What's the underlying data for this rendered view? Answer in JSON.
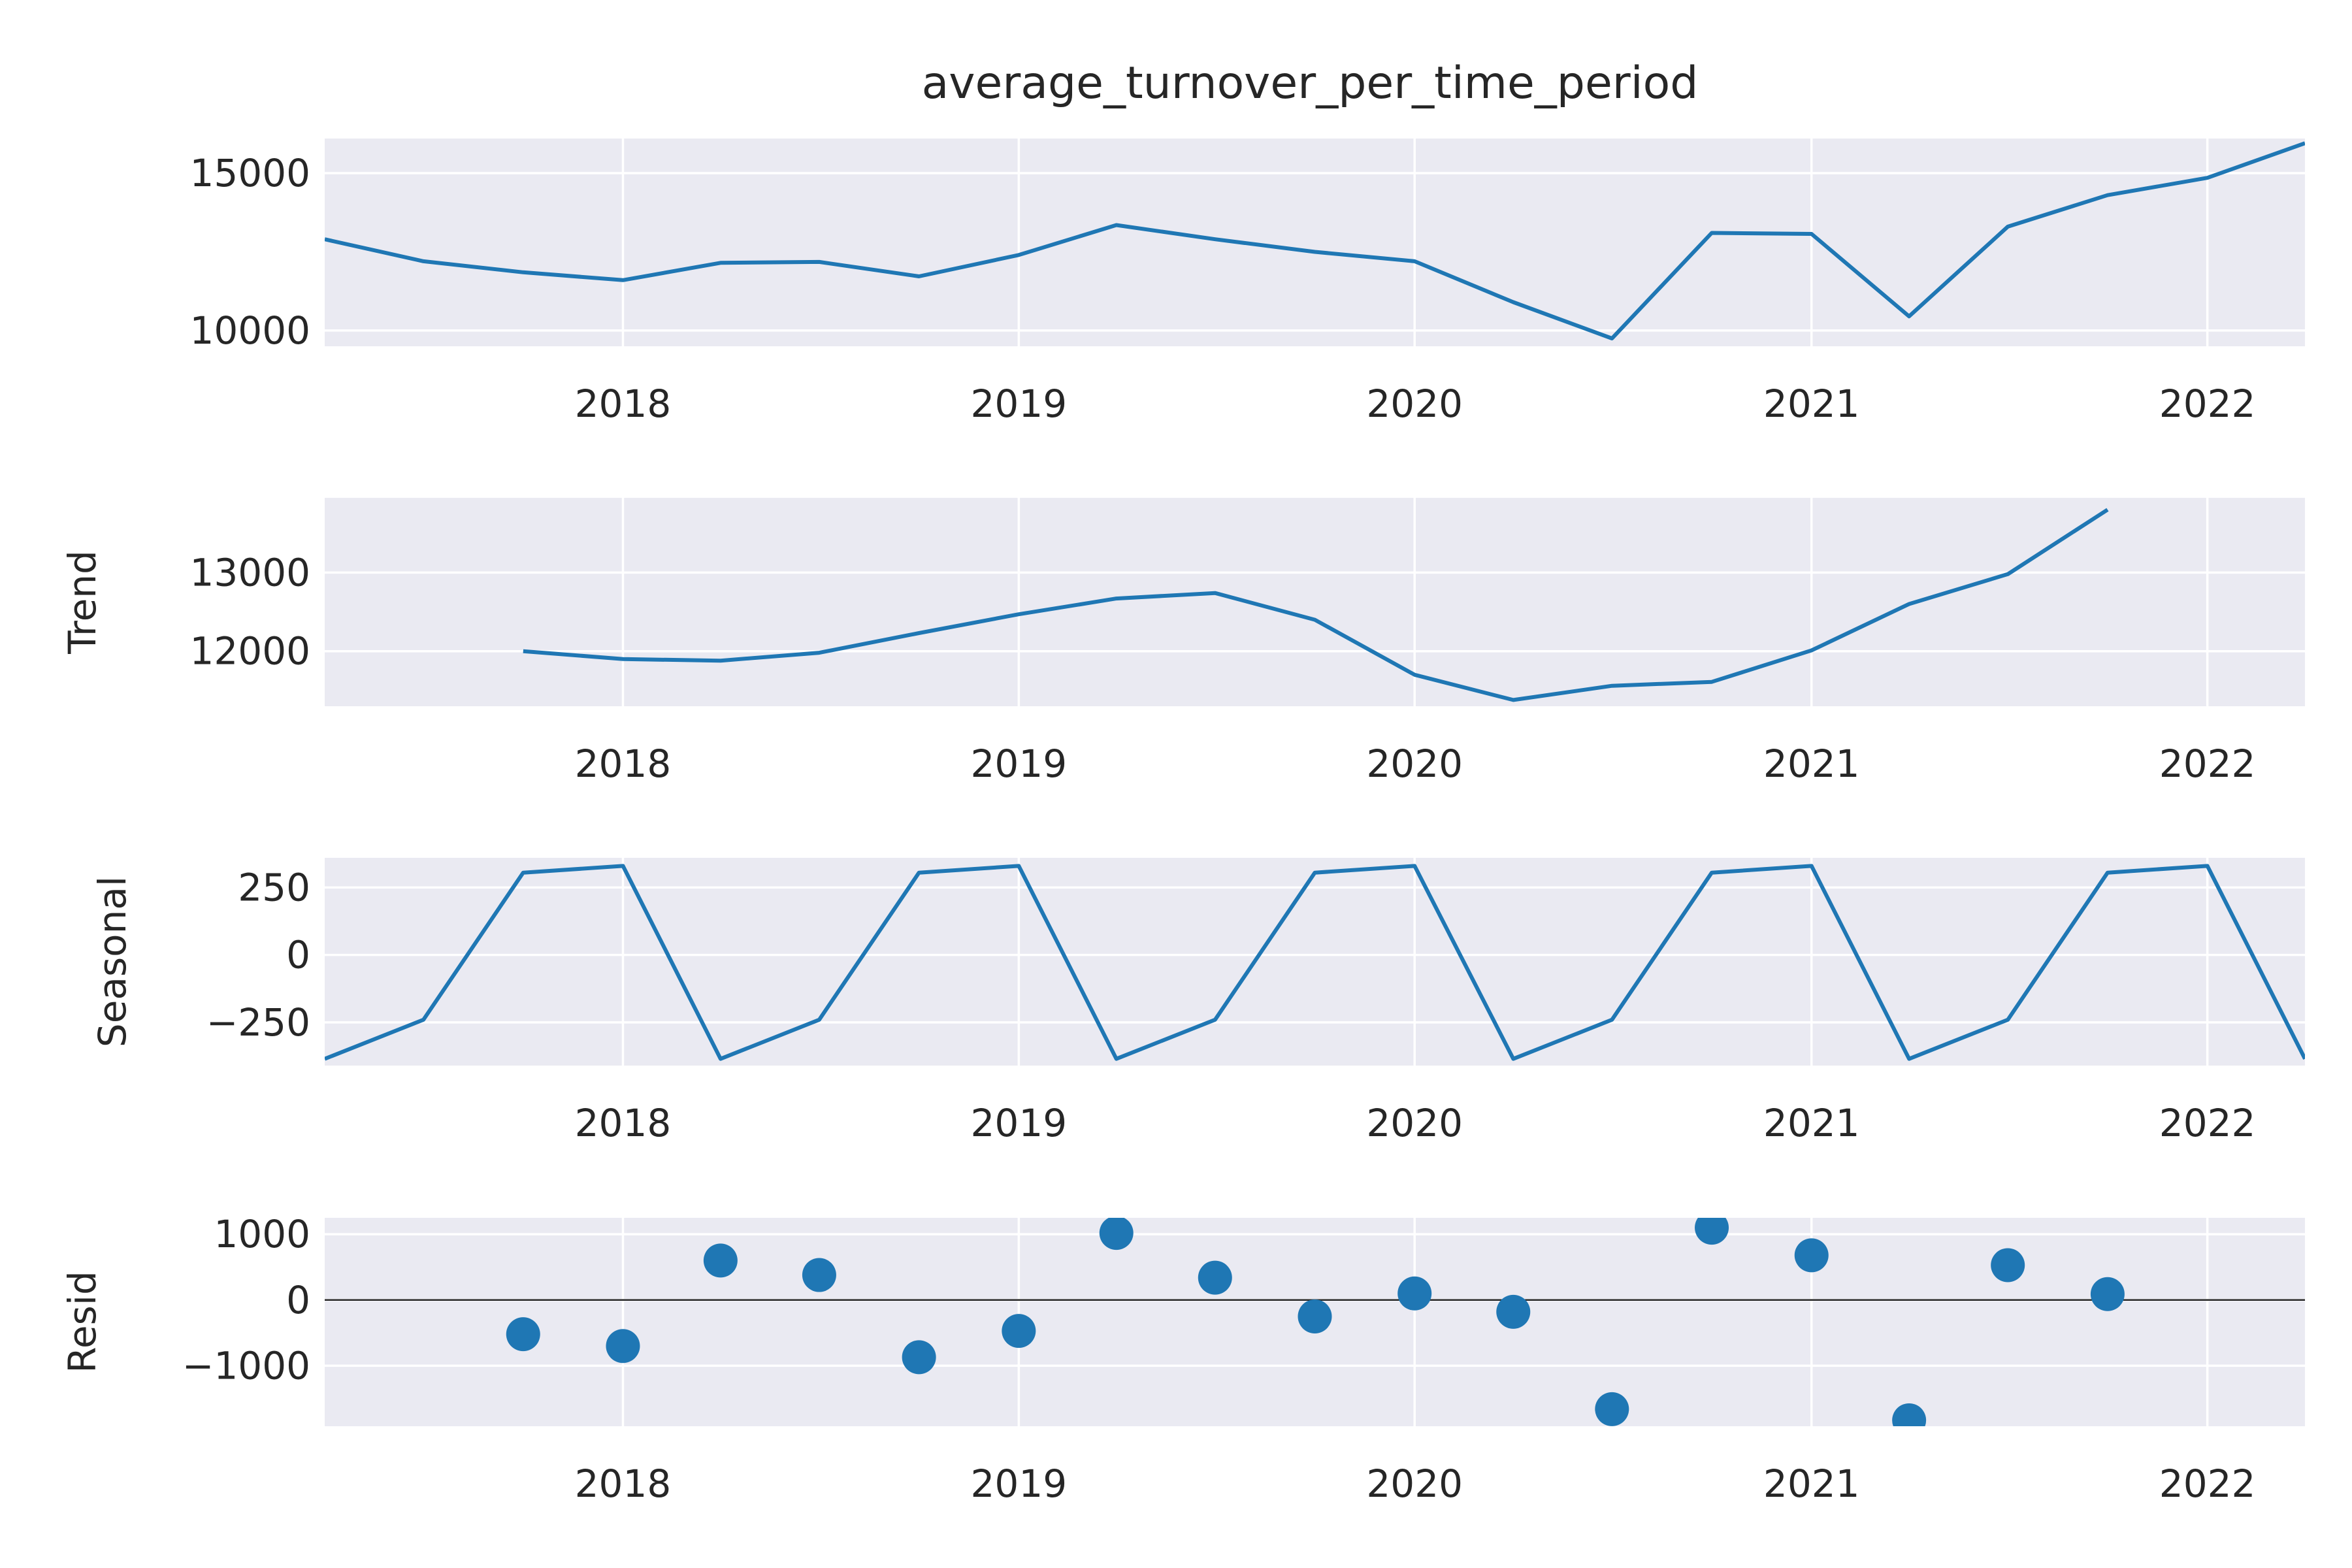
{
  "chart_data": {
    "type": "line",
    "title": "average_turnover_per_time_period",
    "x": [
      "2017-04-01",
      "2017-07-01",
      "2017-10-01",
      "2018-01-01",
      "2018-04-01",
      "2018-07-01",
      "2018-10-01",
      "2019-01-01",
      "2019-04-01",
      "2019-07-01",
      "2019-10-01",
      "2020-01-01",
      "2020-04-01",
      "2020-07-01",
      "2020-10-01",
      "2021-01-01",
      "2021-04-01",
      "2021-07-01",
      "2021-10-01",
      "2022-01-01",
      "2022-04-01"
    ],
    "x_ticks": [
      "2018",
      "2019",
      "2020",
      "2021",
      "2022"
    ],
    "x_tick_dates": [
      "2018-01-01",
      "2019-01-01",
      "2020-01-01",
      "2021-01-01",
      "2022-01-01"
    ],
    "xlim": [
      "2017-04-01",
      "2022-04-01"
    ],
    "grid": true,
    "panels": [
      {
        "kind": "line",
        "ylabel": "",
        "ylim": [
          9500,
          16100
        ],
        "yticks": [
          10000,
          15000
        ],
        "ytick_labels": [
          "10000",
          "15000"
        ],
        "values": [
          12900,
          12200,
          11850,
          11600,
          12150,
          12180,
          11720,
          12400,
          13350,
          12900,
          12500,
          12200,
          10900,
          9750,
          13100,
          13070,
          10450,
          13300,
          14300,
          14850,
          15950
        ]
      },
      {
        "kind": "line",
        "ylabel": "Trend",
        "ylim": [
          11300,
          13950
        ],
        "yticks": [
          12000,
          13000
        ],
        "ytick_labels": [
          "12000",
          "13000"
        ],
        "values": [
          null,
          null,
          12000,
          11900,
          11880,
          11980,
          12230,
          12470,
          12670,
          12740,
          12400,
          11700,
          11380,
          11560,
          11610,
          12010,
          12600,
          12980,
          13800,
          null,
          null
        ]
      },
      {
        "kind": "line",
        "ylabel": "Seasonal",
        "ylim": [
          -410,
          360
        ],
        "yticks": [
          -250,
          0,
          250
        ],
        "ytick_labels": [
          "−250",
          "0",
          "250"
        ],
        "values": [
          -385,
          -240,
          305,
          330,
          -385,
          -240,
          305,
          330,
          -385,
          -240,
          305,
          330,
          -385,
          -240,
          305,
          330,
          -385,
          -240,
          305,
          330,
          -385
        ]
      },
      {
        "kind": "scatter",
        "ylabel": "Resid",
        "ylim": [
          -1920,
          1250
        ],
        "yticks": [
          -1000,
          0,
          1000
        ],
        "ytick_labels": [
          "−1000",
          "0",
          "1000"
        ],
        "zero_line": true,
        "values": [
          null,
          null,
          -520,
          -700,
          600,
          380,
          -870,
          -470,
          1020,
          340,
          -250,
          100,
          -180,
          -1660,
          1100,
          680,
          -1830,
          530,
          90,
          null,
          null
        ]
      }
    ]
  }
}
